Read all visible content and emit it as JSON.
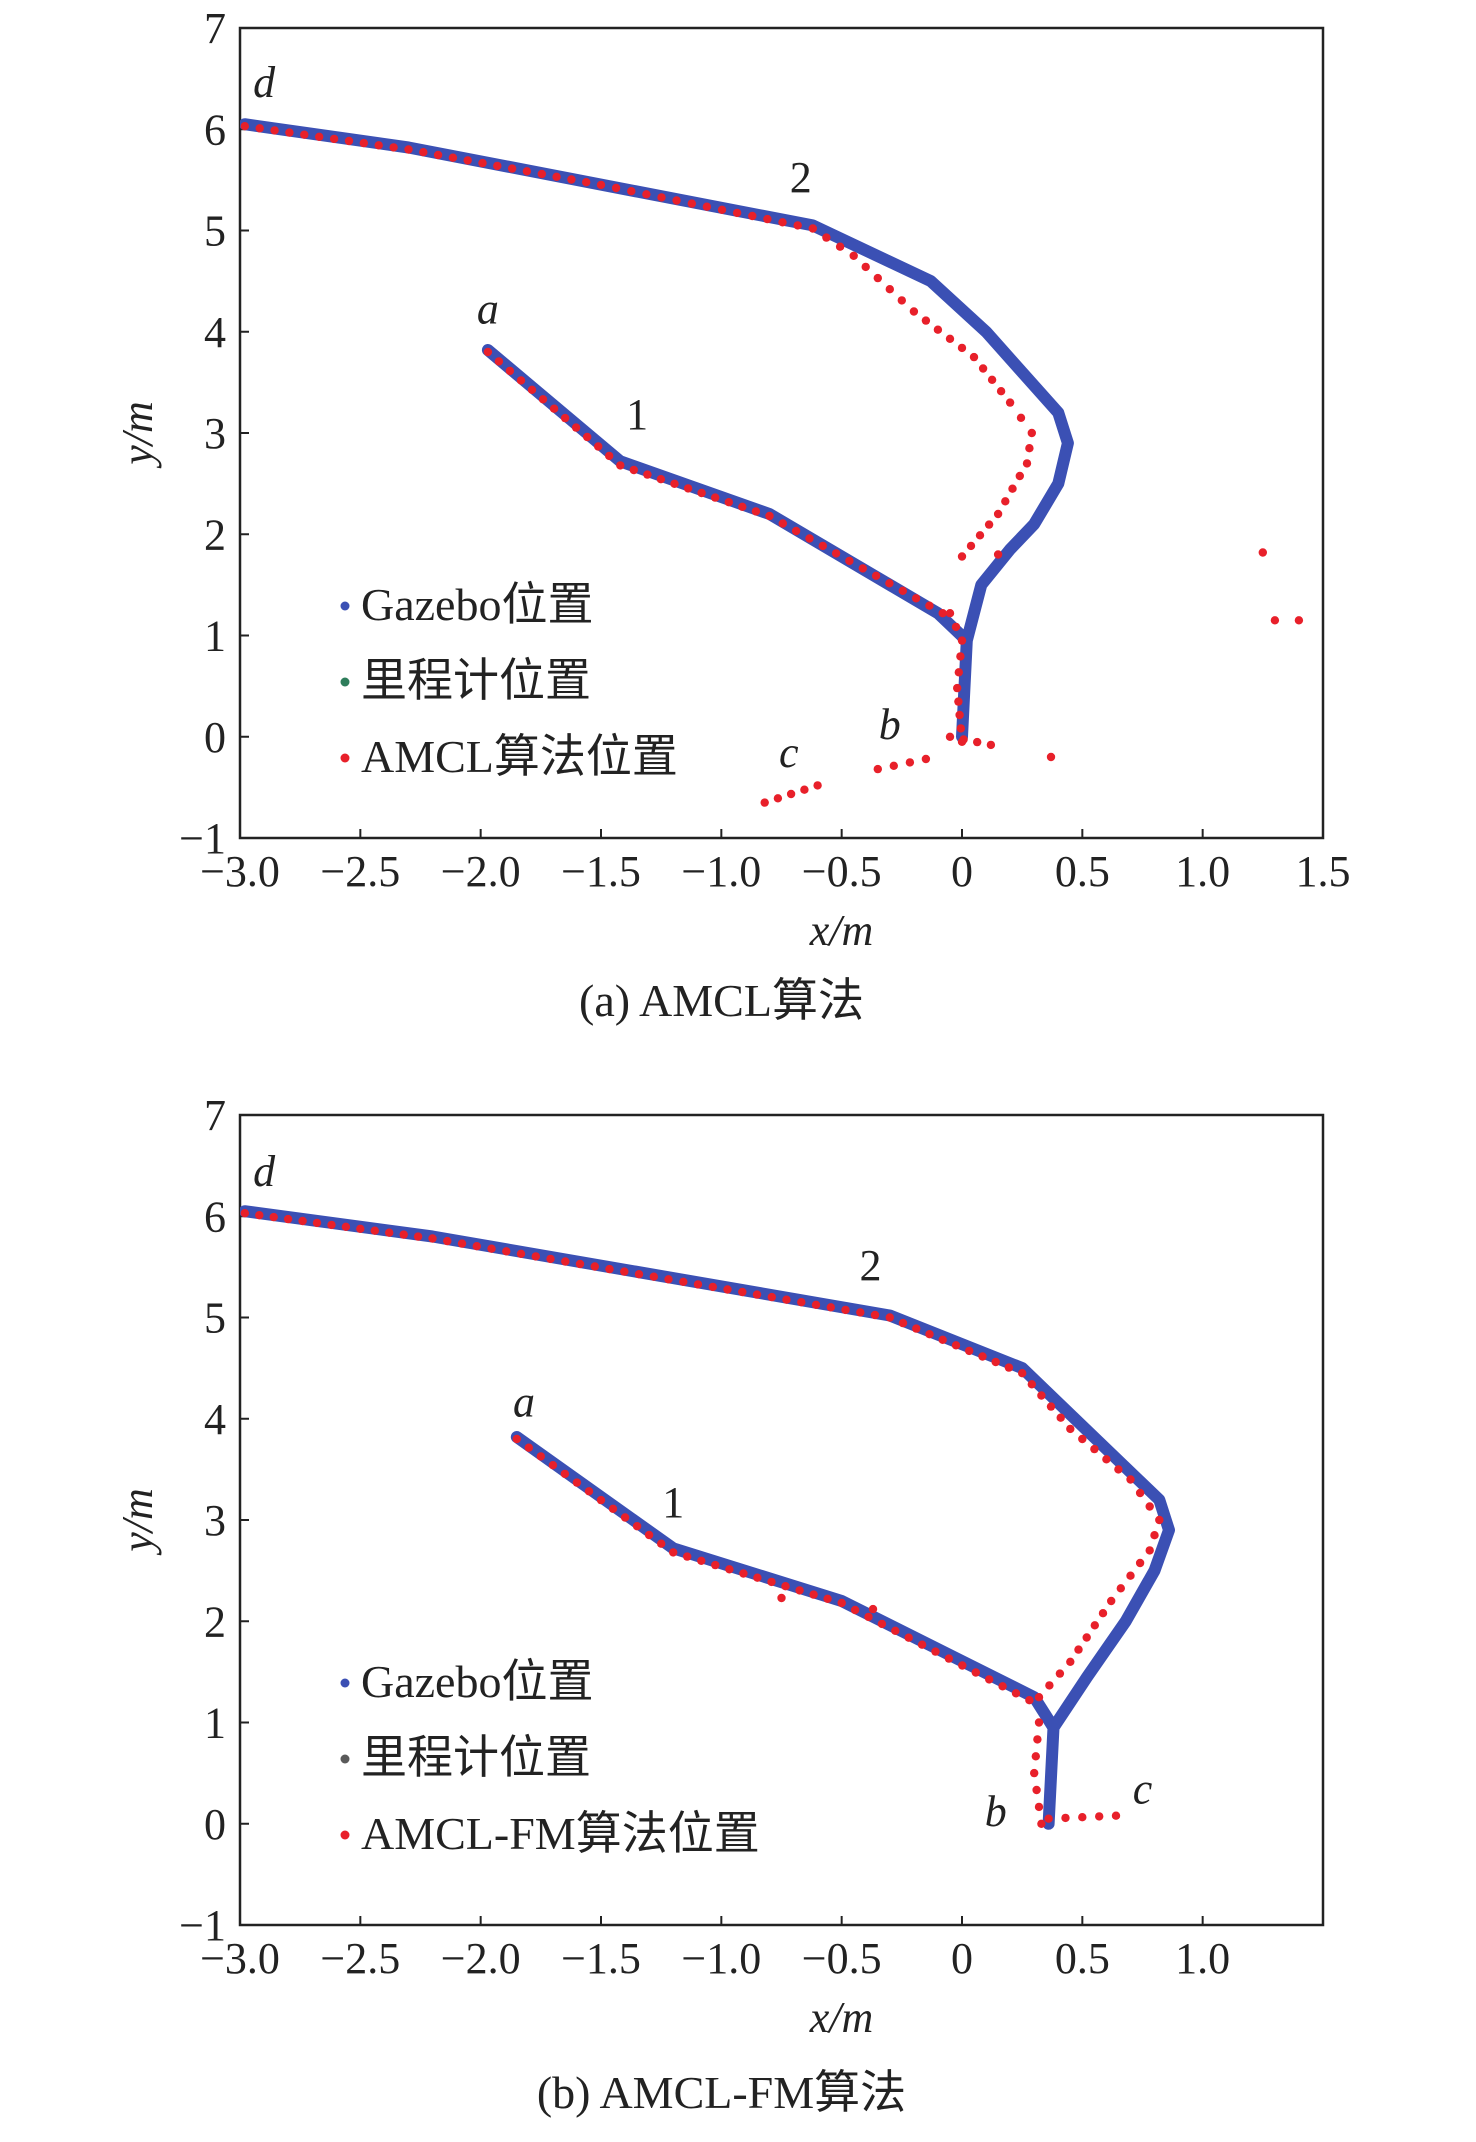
{
  "colors": {
    "gazebo": "#3b50b4",
    "odometry": "#2e7d5b",
    "odometry_b": "#5a5a5a",
    "amcl": "#e8202a",
    "axis": "#222222"
  },
  "chart_data": [
    {
      "type": "scatter",
      "title": "",
      "caption": "(a) AMCL算法",
      "xlabel": "x/m",
      "ylabel": "y/m",
      "xlim": [
        -3.0,
        1.5
      ],
      "ylim": [
        -1,
        7
      ],
      "xticks": [
        "−3.0",
        "−2.5",
        "−2.0",
        "−1.5",
        "−1.0",
        "−0.5",
        "0",
        "0.5",
        "1.0",
        "1.5"
      ],
      "yticks": [
        "−1",
        "0",
        "1",
        "2",
        "3",
        "4",
        "5",
        "6",
        "7"
      ],
      "legend_position": "bottom-left",
      "grid": false,
      "legend": [
        "Gazebo位置",
        "里程计位置",
        "AMCL算法位置"
      ],
      "series": [
        {
          "name": "Gazebo位置",
          "style": "thick-line",
          "points": [
            [
              -1.97,
              3.82
            ],
            [
              -1.42,
              2.72
            ],
            [
              -0.8,
              2.2
            ],
            [
              -0.1,
              1.22
            ],
            [
              0.02,
              0.95
            ],
            [
              0.0,
              0.0
            ],
            [
              0.02,
              0.95
            ],
            [
              0.08,
              1.5
            ],
            [
              0.2,
              1.85
            ],
            [
              0.3,
              2.1
            ],
            [
              0.4,
              2.5
            ],
            [
              0.44,
              2.9
            ],
            [
              0.4,
              3.2
            ],
            [
              0.1,
              4.0
            ],
            [
              -0.13,
              4.5
            ],
            [
              -0.62,
              5.05
            ],
            [
              -2.3,
              5.82
            ],
            [
              -2.98,
              6.05
            ]
          ]
        },
        {
          "name": "里程计位置",
          "style": "dots",
          "points": []
        },
        {
          "name": "AMCL算法位置",
          "style": "dots",
          "segments": [
            [
              [
                -1.97,
                3.8
              ],
              [
                -1.42,
                2.68
              ],
              [
                -0.8,
                2.18
              ],
              [
                -0.08,
                1.22
              ]
            ],
            [
              [
                0.0,
                -0.05
              ],
              [
                -0.02,
                0.48
              ],
              [
                0.0,
                0.95
              ],
              [
                -0.05,
                1.22
              ]
            ],
            [
              [
                -0.05,
                0.0
              ],
              [
                0.12,
                -0.08
              ]
            ],
            [
              [
                -0.35,
                -0.32
              ],
              [
                -0.15,
                -0.22
              ]
            ],
            [
              [
                -0.82,
                -0.65
              ],
              [
                -0.6,
                -0.48
              ]
            ],
            [
              [
                0.0,
                1.78
              ],
              [
                0.15,
                2.2
              ],
              [
                0.27,
                2.7
              ],
              [
                0.29,
                3.0
              ],
              [
                0.2,
                3.3
              ],
              [
                0.05,
                3.75
              ],
              [
                -0.2,
                4.2
              ],
              [
                -0.45,
                4.75
              ],
              [
                -0.62,
                5.02
              ],
              [
                -1.5,
                5.45
              ],
              [
                -2.3,
                5.8
              ],
              [
                -2.98,
                6.03
              ]
            ]
          ],
          "points": [
            [
              0.37,
              -0.2
            ],
            [
              0.15,
              1.8
            ],
            [
              1.25,
              1.82
            ],
            [
              1.3,
              1.15
            ],
            [
              1.4,
              1.15
            ]
          ]
        }
      ],
      "annotations": [
        {
          "text": "a",
          "x": -1.97,
          "y": 4.08
        },
        {
          "text": "b",
          "x": -0.3,
          "y": -0.02
        },
        {
          "text": "c",
          "x": -0.72,
          "y": -0.3
        },
        {
          "text": "d",
          "x": -2.9,
          "y": 6.32
        },
        {
          "text": "1",
          "x": -1.35,
          "y": 3.04
        },
        {
          "text": "2",
          "x": -0.67,
          "y": 5.38
        }
      ]
    },
    {
      "type": "scatter",
      "title": "",
      "caption": "(b) AMCL-FM算法",
      "xlabel": "x/m",
      "ylabel": "y/m",
      "xlim": [
        -3.0,
        1.5
      ],
      "ylim": [
        -1,
        7
      ],
      "xticks": [
        "−3.0",
        "−2.5",
        "−2.0",
        "−1.5",
        "−1.0",
        "−0.5",
        "0",
        "0.5",
        "1.0"
      ],
      "yticks": [
        "−1",
        "0",
        "1",
        "2",
        "3",
        "4",
        "5",
        "6",
        "7"
      ],
      "legend_position": "bottom-left",
      "grid": false,
      "legend": [
        "Gazebo位置",
        "里程计位置",
        "AMCL-FM算法位置"
      ],
      "series": [
        {
          "name": "Gazebo位置",
          "style": "thick-line",
          "points": [
            [
              -1.85,
              3.82
            ],
            [
              -1.2,
              2.72
            ],
            [
              -0.5,
              2.2
            ],
            [
              0.3,
              1.25
            ],
            [
              0.38,
              0.95
            ],
            [
              0.36,
              0.0
            ],
            [
              0.38,
              0.95
            ],
            [
              0.52,
              1.45
            ],
            [
              0.68,
              2.0
            ],
            [
              0.8,
              2.5
            ],
            [
              0.86,
              2.9
            ],
            [
              0.82,
              3.2
            ],
            [
              0.6,
              3.7
            ],
            [
              0.25,
              4.5
            ],
            [
              -0.3,
              5.02
            ],
            [
              -2.2,
              5.8
            ],
            [
              -2.98,
              6.05
            ]
          ]
        },
        {
          "name": "里程计位置",
          "style": "dots",
          "points": []
        },
        {
          "name": "AMCL-FM算法位置",
          "style": "dots",
          "segments": [
            [
              [
                -1.85,
                3.8
              ],
              [
                -1.2,
                2.68
              ],
              [
                -0.5,
                2.18
              ],
              [
                0.28,
                1.22
              ]
            ],
            [
              [
                0.32,
                1.0
              ],
              [
                0.3,
                0.5
              ],
              [
                0.33,
                0.0
              ]
            ],
            [
              [
                0.36,
                0.05
              ],
              [
                0.64,
                0.08
              ]
            ],
            [
              [
                0.32,
                1.25
              ],
              [
                0.45,
                1.6
              ],
              [
                0.62,
                2.2
              ],
              [
                0.78,
                2.7
              ],
              [
                0.82,
                3.0
              ],
              [
                0.7,
                3.4
              ],
              [
                0.45,
                3.9
              ],
              [
                0.25,
                4.45
              ],
              [
                -0.3,
                5.0
              ],
              [
                -2.2,
                5.78
              ],
              [
                -2.98,
                6.03
              ]
            ]
          ],
          "points": [
            [
              -0.75,
              2.23
            ],
            [
              -0.37,
              2.12
            ]
          ]
        }
      ],
      "annotations": [
        {
          "text": "a",
          "x": -1.82,
          "y": 4.02
        },
        {
          "text": "b",
          "x": 0.14,
          "y": -0.02
        },
        {
          "text": "c",
          "x": 0.75,
          "y": 0.2
        },
        {
          "text": "d",
          "x": -2.9,
          "y": 6.3
        },
        {
          "text": "1",
          "x": -1.2,
          "y": 3.03
        },
        {
          "text": "2",
          "x": -0.38,
          "y": 5.37
        }
      ]
    }
  ]
}
